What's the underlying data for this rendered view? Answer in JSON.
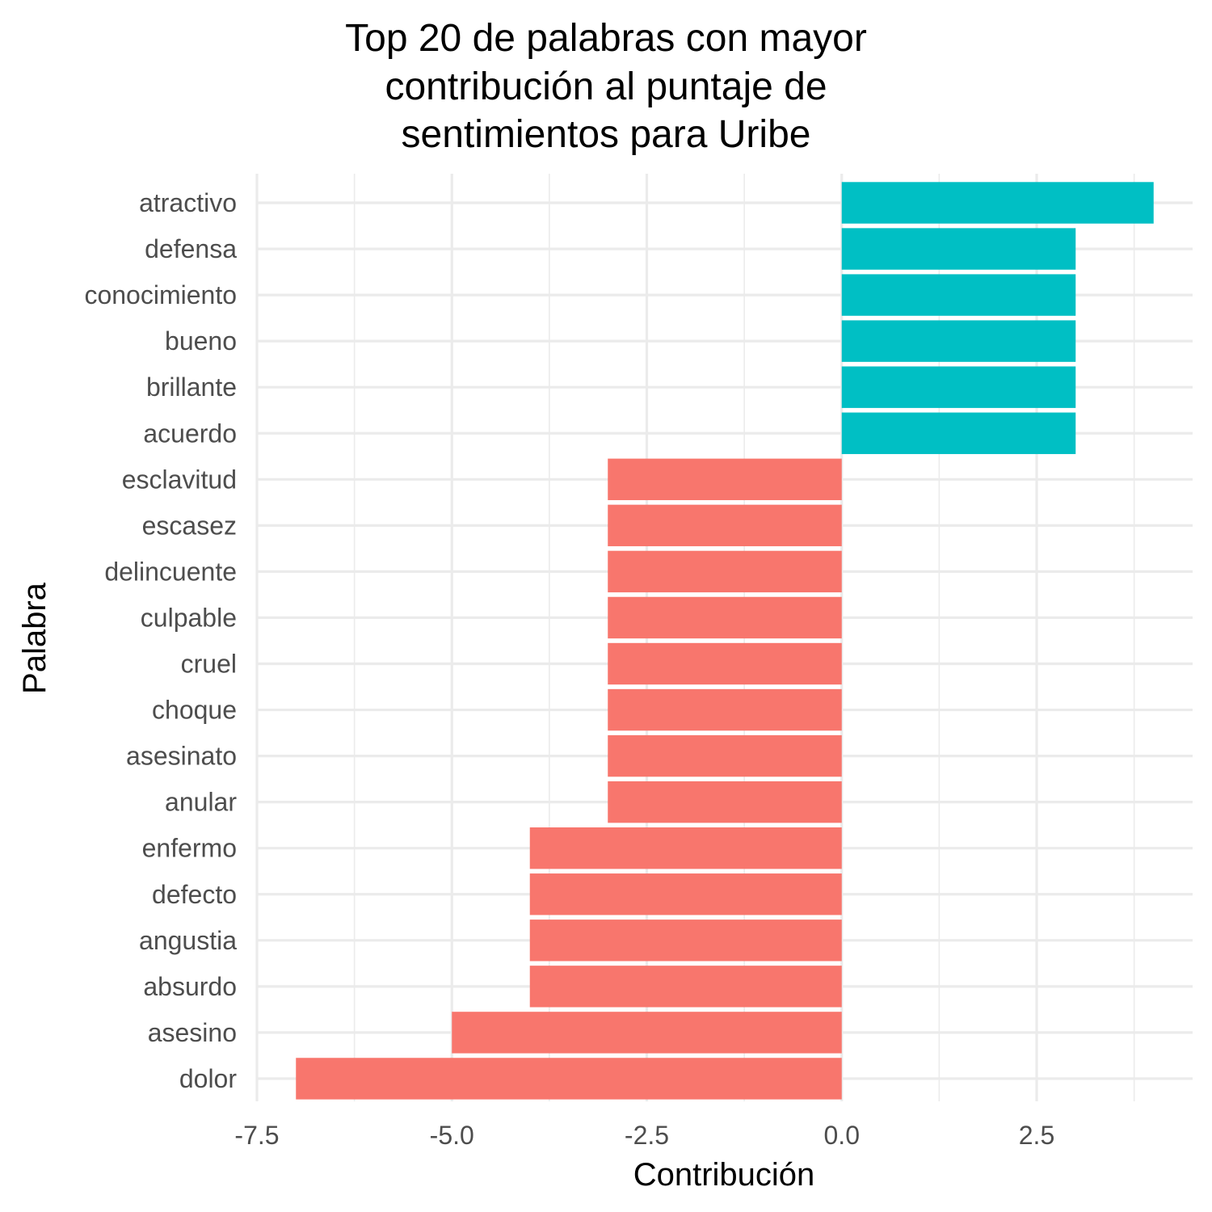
{
  "chart_data": {
    "type": "bar",
    "orientation": "horizontal",
    "title_lines": [
      "Top 20 de palabras con mayor",
      "contribución al puntaje de",
      "sentimientos para Uribe"
    ],
    "xlabel": "Contribución",
    "ylabel": "Palabra",
    "xlim": [
      -7.5,
      4.5
    ],
    "x_ticks": [
      -7.5,
      -5.0,
      -2.5,
      0.0,
      2.5
    ],
    "x_tick_labels": [
      "-7.5",
      "-5.0",
      "-2.5",
      "0.0",
      "2.5"
    ],
    "grid": true,
    "legend": "none",
    "colors": {
      "positive": "#00BFC4",
      "negative": "#F8766D",
      "grid": "#EBEBEB"
    },
    "categories": [
      "atractivo",
      "defensa",
      "conocimiento",
      "bueno",
      "brillante",
      "acuerdo",
      "esclavitud",
      "escasez",
      "delincuente",
      "culpable",
      "cruel",
      "choque",
      "asesinato",
      "anular",
      "enfermo",
      "defecto",
      "angustia",
      "absurdo",
      "asesino",
      "dolor"
    ],
    "values": [
      4,
      3,
      3,
      3,
      3,
      3,
      -3,
      -3,
      -3,
      -3,
      -3,
      -3,
      -3,
      -3,
      -4,
      -4,
      -4,
      -4,
      -5,
      -7
    ]
  }
}
